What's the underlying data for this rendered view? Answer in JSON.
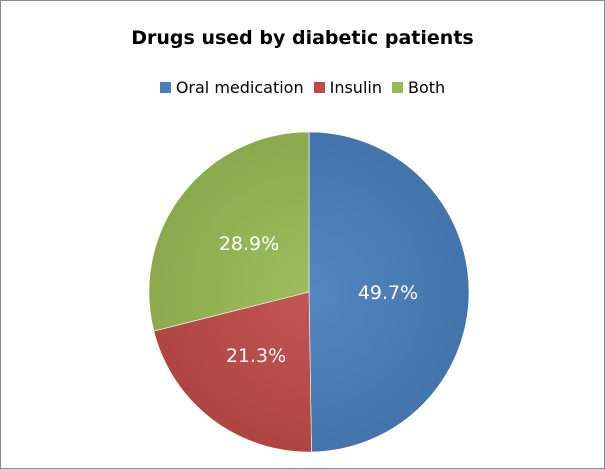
{
  "chart_data": {
    "type": "pie",
    "title": "Drugs used by diabetic patients",
    "legend_position": "top",
    "categories": [
      "Oral medication",
      "Insulin",
      "Both"
    ],
    "values": [
      49.7,
      21.3,
      28.9
    ],
    "data_labels": [
      "49.7%",
      "21.3%",
      "28.9%"
    ],
    "unit": "%",
    "colors": [
      "#4a7ebb",
      "#be4b48",
      "#98b954"
    ]
  }
}
